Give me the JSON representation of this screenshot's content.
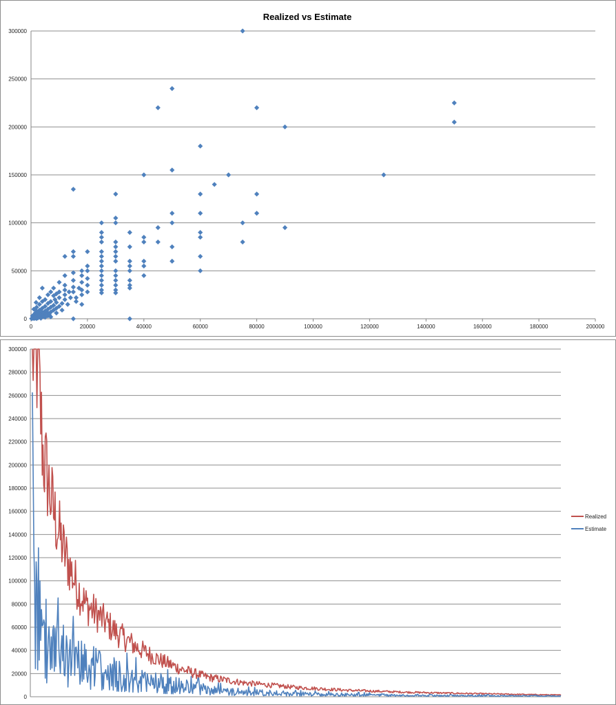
{
  "chart_data": [
    {
      "type": "scatter",
      "title": "Realized vs Estimate",
      "xlim": [
        0,
        200000
      ],
      "ylim": [
        0,
        300000
      ],
      "xticks": [
        0,
        20000,
        40000,
        60000,
        80000,
        100000,
        120000,
        140000,
        160000,
        180000,
        200000
      ],
      "yticks": [
        0,
        50000,
        100000,
        150000,
        200000,
        250000,
        300000
      ],
      "grid": "horizontal",
      "marker": "diamond",
      "color": "#4f81bd",
      "points": [
        [
          75000,
          300000
        ],
        [
          50000,
          240000
        ],
        [
          45000,
          220000
        ],
        [
          80000,
          220000
        ],
        [
          150000,
          225000
        ],
        [
          150000,
          205000
        ],
        [
          90000,
          200000
        ],
        [
          60000,
          180000
        ],
        [
          50000,
          155000
        ],
        [
          40000,
          150000
        ],
        [
          70000,
          150000
        ],
        [
          125000,
          150000
        ],
        [
          65000,
          140000
        ],
        [
          15000,
          135000
        ],
        [
          30000,
          130000
        ],
        [
          60000,
          130000
        ],
        [
          80000,
          130000
        ],
        [
          50000,
          110000
        ],
        [
          60000,
          110000
        ],
        [
          80000,
          110000
        ],
        [
          30000,
          105000
        ],
        [
          25000,
          100000
        ],
        [
          30000,
          100000
        ],
        [
          50000,
          100000
        ],
        [
          75000,
          100000
        ],
        [
          45000,
          95000
        ],
        [
          90000,
          95000
        ],
        [
          25000,
          90000
        ],
        [
          35000,
          90000
        ],
        [
          60000,
          90000
        ],
        [
          25000,
          85000
        ],
        [
          40000,
          85000
        ],
        [
          60000,
          85000
        ],
        [
          25000,
          80000
        ],
        [
          30000,
          80000
        ],
        [
          40000,
          80000
        ],
        [
          45000,
          80000
        ],
        [
          75000,
          80000
        ],
        [
          30000,
          75000
        ],
        [
          35000,
          75000
        ],
        [
          50000,
          75000
        ],
        [
          25000,
          70000
        ],
        [
          30000,
          70000
        ],
        [
          15000,
          70000
        ],
        [
          20000,
          70000
        ],
        [
          12000,
          65000
        ],
        [
          15000,
          65000
        ],
        [
          25000,
          65000
        ],
        [
          30000,
          65000
        ],
        [
          35000,
          60000
        ],
        [
          40000,
          60000
        ],
        [
          50000,
          60000
        ],
        [
          60000,
          65000
        ],
        [
          25000,
          60000
        ],
        [
          30000,
          60000
        ],
        [
          20000,
          55000
        ],
        [
          25000,
          55000
        ],
        [
          35000,
          55000
        ],
        [
          40000,
          55000
        ],
        [
          18000,
          50000
        ],
        [
          20000,
          50000
        ],
        [
          25000,
          50000
        ],
        [
          30000,
          50000
        ],
        [
          35000,
          50000
        ],
        [
          60000,
          50000
        ],
        [
          15000,
          48000
        ],
        [
          18000,
          45000
        ],
        [
          25000,
          45000
        ],
        [
          30000,
          45000
        ],
        [
          40000,
          45000
        ],
        [
          12000,
          45000
        ],
        [
          20000,
          42000
        ],
        [
          25000,
          40000
        ],
        [
          30000,
          40000
        ],
        [
          35000,
          40000
        ],
        [
          15000,
          40000
        ],
        [
          18000,
          38000
        ],
        [
          10000,
          38000
        ],
        [
          12000,
          35000
        ],
        [
          20000,
          35000
        ],
        [
          25000,
          35000
        ],
        [
          30000,
          35000
        ],
        [
          35000,
          35000
        ],
        [
          15000,
          33000
        ],
        [
          8000,
          32000
        ],
        [
          4000,
          32000
        ],
        [
          18000,
          30000
        ],
        [
          25000,
          30000
        ],
        [
          30000,
          30000
        ],
        [
          35000,
          32000
        ],
        [
          12000,
          30000
        ],
        [
          10000,
          28000
        ],
        [
          15000,
          28000
        ],
        [
          25000,
          27000
        ],
        [
          30000,
          27000
        ],
        [
          20000,
          28000
        ],
        [
          7000,
          28000
        ],
        [
          9000,
          26000
        ],
        [
          12000,
          25000
        ],
        [
          18000,
          25000
        ],
        [
          16000,
          22000
        ],
        [
          6000,
          25000
        ],
        [
          8000,
          24000
        ],
        [
          14000,
          22000
        ],
        [
          10000,
          22000
        ],
        [
          3000,
          22000
        ],
        [
          5000,
          20000
        ],
        [
          12000,
          20000
        ],
        [
          16000,
          18000
        ],
        [
          18000,
          15000
        ],
        [
          7000,
          18000
        ],
        [
          9000,
          17000
        ],
        [
          11000,
          16000
        ],
        [
          13000,
          15000
        ],
        [
          4000,
          18000
        ],
        [
          6000,
          16000
        ],
        [
          8000,
          14000
        ],
        [
          10000,
          13000
        ],
        [
          3000,
          15000
        ],
        [
          5000,
          13000
        ],
        [
          7000,
          12000
        ],
        [
          9000,
          11000
        ],
        [
          2000,
          12000
        ],
        [
          4000,
          11000
        ],
        [
          6000,
          10000
        ],
        [
          8000,
          9000
        ],
        [
          1000,
          10000
        ],
        [
          3000,
          9000
        ],
        [
          5000,
          8000
        ],
        [
          7000,
          7000
        ],
        [
          2000,
          8000
        ],
        [
          4000,
          7000
        ],
        [
          6000,
          6000
        ],
        [
          1500,
          6000
        ],
        [
          3000,
          5000
        ],
        [
          5000,
          5000
        ],
        [
          1000,
          4000
        ],
        [
          2000,
          4000
        ],
        [
          4000,
          3500
        ],
        [
          6000,
          3000
        ],
        [
          500,
          3000
        ],
        [
          1500,
          2500
        ],
        [
          3000,
          2000
        ],
        [
          5000,
          1500
        ],
        [
          2500,
          1000
        ],
        [
          1000,
          1500
        ],
        [
          500,
          1000
        ],
        [
          800,
          500
        ],
        [
          1200,
          300
        ],
        [
          2000,
          200
        ],
        [
          3500,
          500
        ],
        [
          7000,
          2000
        ],
        [
          4500,
          2500
        ],
        [
          6500,
          4000
        ],
        [
          9000,
          6000
        ],
        [
          11000,
          9000
        ],
        [
          2500,
          6500
        ],
        [
          15000,
          0
        ],
        [
          35000,
          0
        ],
        [
          1800,
          17000
        ],
        [
          500,
          500
        ],
        [
          200,
          200
        ],
        [
          1500,
          800
        ],
        [
          8500,
          20000
        ],
        [
          13500,
          28000
        ],
        [
          17000,
          32000
        ]
      ]
    },
    {
      "type": "line",
      "ylim": [
        0,
        300000
      ],
      "yticks": [
        0,
        20000,
        40000,
        60000,
        80000,
        100000,
        120000,
        140000,
        160000,
        180000,
        200000,
        220000,
        240000,
        260000,
        280000,
        300000
      ],
      "grid": "horizontal",
      "legend_position": "right",
      "n_points": 700,
      "series": [
        {
          "name": "Realized",
          "color": "#c0504d",
          "trend": [
            [
              0,
              300000
            ],
            [
              0.01,
              290000
            ],
            [
              0.02,
              210000
            ],
            [
              0.04,
              160000
            ],
            [
              0.06,
              125000
            ],
            [
              0.08,
              100000
            ],
            [
              0.1,
              80000
            ],
            [
              0.13,
              68000
            ],
            [
              0.16,
              55000
            ],
            [
              0.2,
              42000
            ],
            [
              0.24,
              32000
            ],
            [
              0.28,
              24000
            ],
            [
              0.33,
              17000
            ],
            [
              0.4,
              12000
            ],
            [
              0.5,
              8000
            ],
            [
              0.6,
              5500
            ],
            [
              0.7,
              4000
            ],
            [
              0.8,
              3000
            ],
            [
              0.9,
              2200
            ],
            [
              1,
              1500
            ]
          ]
        },
        {
          "name": "Estimate",
          "color": "#4f81bd",
          "trend": [
            [
              0,
              160000
            ],
            [
              0.005,
              100000
            ],
            [
              0.015,
              60000
            ],
            [
              0.03,
              45000
            ],
            [
              0.06,
              35000
            ],
            [
              0.1,
              27000
            ],
            [
              0.15,
              20000
            ],
            [
              0.2,
              15000
            ],
            [
              0.25,
              11000
            ],
            [
              0.3,
              8000
            ],
            [
              0.35,
              5500
            ],
            [
              0.4,
              4000
            ],
            [
              0.5,
              2500
            ],
            [
              0.6,
              1800
            ],
            [
              0.7,
              1300
            ],
            [
              0.8,
              1000
            ],
            [
              0.9,
              800
            ],
            [
              1,
              600
            ]
          ]
        }
      ]
    }
  ]
}
